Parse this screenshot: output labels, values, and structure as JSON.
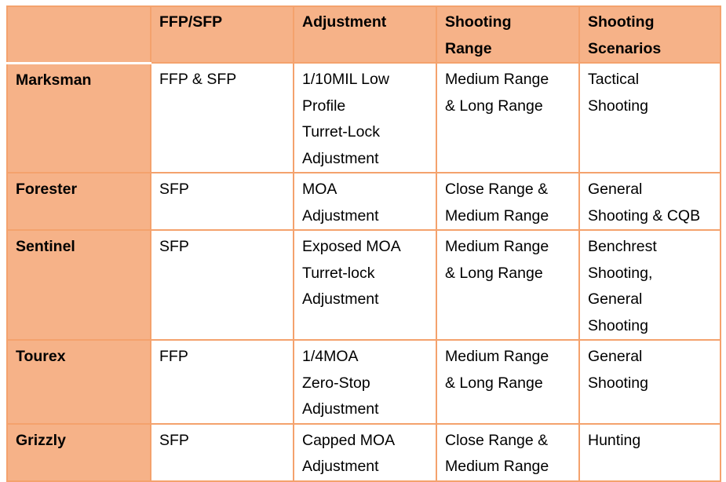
{
  "table": {
    "headers": [
      "",
      "FFP/SFP",
      "Adjustment",
      "Shooting\nRange",
      "Shooting\nScenarios"
    ],
    "rows": [
      {
        "name": "Marksman",
        "focal_plane": "FFP & SFP",
        "adjustment": "1/10MIL Low\nProfile\nTurret-Lock\nAdjustment",
        "range": "Medium Range\n& Long Range",
        "scenarios": "Tactical\nShooting"
      },
      {
        "name": "Forester",
        "focal_plane": "SFP",
        "adjustment": "MOA\nAdjustment",
        "range": "Close Range &\nMedium Range",
        "scenarios": "General\nShooting & CQB"
      },
      {
        "name": "Sentinel",
        "focal_plane": "SFP",
        "adjustment": "Exposed MOA\nTurret-lock\nAdjustment",
        "range": "Medium Range\n& Long Range",
        "scenarios": "Benchrest\nShooting,\nGeneral\nShooting"
      },
      {
        "name": "Tourex",
        "focal_plane": "FFP",
        "adjustment": "1/4MOA\nZero-Stop\nAdjustment",
        "range": "Medium Range\n& Long Range",
        "scenarios": "General\nShooting"
      },
      {
        "name": "Grizzly",
        "focal_plane": "SFP",
        "adjustment": "Capped MOA\nAdjustment",
        "range": "Close Range &\nMedium Range",
        "scenarios": "Hunting"
      }
    ]
  },
  "colors": {
    "header_fill": "#f6b288",
    "border": "#f4a26d"
  }
}
